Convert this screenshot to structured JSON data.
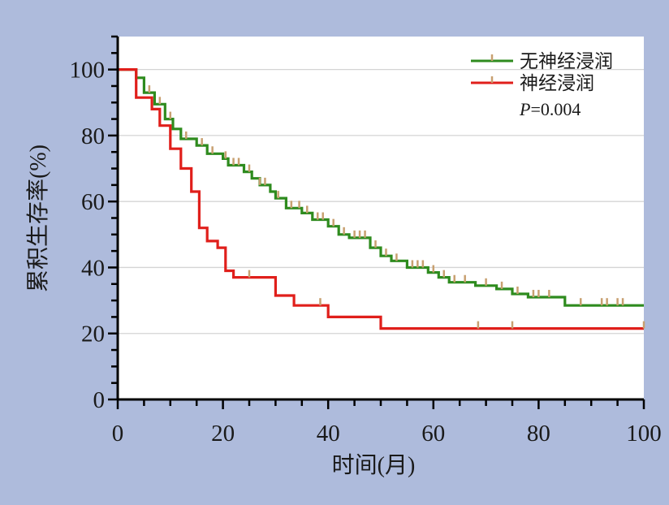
{
  "chart_data": {
    "type": "line",
    "xlabel": "时间(月)",
    "ylabel": "累积生存率(%)",
    "xlim": [
      0,
      100
    ],
    "ylim": [
      0,
      110
    ],
    "xticks": [
      0,
      20,
      40,
      60,
      80,
      100
    ],
    "yticks": [
      0,
      20,
      40,
      60,
      80,
      100
    ],
    "grid": true,
    "legend_position": "top-right",
    "annotation": {
      "label": "P",
      "value": "=0.004"
    },
    "series": [
      {
        "name": "无神经浸润",
        "color": "#2e8b1e",
        "tick_color": "#c8a070",
        "step": [
          [
            0,
            100
          ],
          [
            3.5,
            100
          ],
          [
            3.5,
            97.5
          ],
          [
            5,
            97.5
          ],
          [
            5,
            93
          ],
          [
            7,
            93
          ],
          [
            7,
            89.5
          ],
          [
            9,
            89.5
          ],
          [
            9,
            85
          ],
          [
            10.5,
            85
          ],
          [
            10.5,
            82
          ],
          [
            12,
            82
          ],
          [
            12,
            79
          ],
          [
            15,
            79
          ],
          [
            15,
            77
          ],
          [
            17,
            77
          ],
          [
            17,
            74.5
          ],
          [
            20,
            74.5
          ],
          [
            20,
            73
          ],
          [
            21,
            73
          ],
          [
            21,
            71
          ],
          [
            24,
            71
          ],
          [
            24,
            69
          ],
          [
            25.5,
            69
          ],
          [
            25.5,
            67
          ],
          [
            27,
            67
          ],
          [
            27,
            65
          ],
          [
            29,
            65
          ],
          [
            29,
            63
          ],
          [
            30,
            63
          ],
          [
            30,
            61
          ],
          [
            32,
            61
          ],
          [
            32,
            58
          ],
          [
            35,
            58
          ],
          [
            35,
            56.5
          ],
          [
            37,
            56.5
          ],
          [
            37,
            54.5
          ],
          [
            40,
            54.5
          ],
          [
            40,
            52.5
          ],
          [
            42,
            52.5
          ],
          [
            42,
            50
          ],
          [
            44,
            50
          ],
          [
            44,
            49
          ],
          [
            48,
            49
          ],
          [
            48,
            46
          ],
          [
            50,
            46
          ],
          [
            50,
            43.5
          ],
          [
            52,
            43.5
          ],
          [
            52,
            42
          ],
          [
            55,
            42
          ],
          [
            55,
            40
          ],
          [
            59,
            40
          ],
          [
            59,
            38.5
          ],
          [
            61,
            38.5
          ],
          [
            61,
            37
          ],
          [
            63,
            37
          ],
          [
            63,
            35.5
          ],
          [
            68,
            35.5
          ],
          [
            68,
            34.5
          ],
          [
            72,
            34.5
          ],
          [
            72,
            33.5
          ],
          [
            75,
            33.5
          ],
          [
            75,
            32
          ],
          [
            78,
            32
          ],
          [
            78,
            31
          ],
          [
            85,
            31
          ],
          [
            85,
            28.5
          ],
          [
            100,
            28.5
          ]
        ],
        "censored": [
          6,
          8,
          10,
          13,
          16,
          18,
          20.5,
          22,
          23,
          25,
          27,
          28,
          30.5,
          33,
          34.5,
          36,
          38,
          39,
          41,
          43,
          45,
          46,
          47,
          49,
          51,
          53,
          56,
          57,
          58,
          60,
          62,
          64,
          66,
          70,
          73,
          76,
          79,
          80,
          82,
          88,
          92,
          93,
          95,
          96
        ]
      },
      {
        "name": "神经浸润",
        "color": "#e01f1b",
        "tick_color": "#c8a070",
        "step": [
          [
            0,
            100
          ],
          [
            3.5,
            100
          ],
          [
            3.5,
            91.5
          ],
          [
            6.5,
            91.5
          ],
          [
            6.5,
            88
          ],
          [
            8,
            88
          ],
          [
            8,
            83
          ],
          [
            10,
            83
          ],
          [
            10,
            76
          ],
          [
            12,
            76
          ],
          [
            12,
            70
          ],
          [
            14,
            70
          ],
          [
            14,
            63
          ],
          [
            15.5,
            63
          ],
          [
            15.5,
            52
          ],
          [
            17,
            52
          ],
          [
            17,
            48
          ],
          [
            19,
            48
          ],
          [
            19,
            46
          ],
          [
            20.5,
            46
          ],
          [
            20.5,
            39
          ],
          [
            22,
            39
          ],
          [
            22,
            37
          ],
          [
            30,
            37
          ],
          [
            30,
            31.5
          ],
          [
            33.5,
            31.5
          ],
          [
            33.5,
            28.5
          ],
          [
            40,
            28.5
          ],
          [
            40,
            25
          ],
          [
            50,
            25
          ],
          [
            50,
            21.5
          ],
          [
            100,
            21.5
          ]
        ],
        "censored": [
          25,
          38.5,
          68.5,
          75,
          100
        ]
      }
    ]
  }
}
